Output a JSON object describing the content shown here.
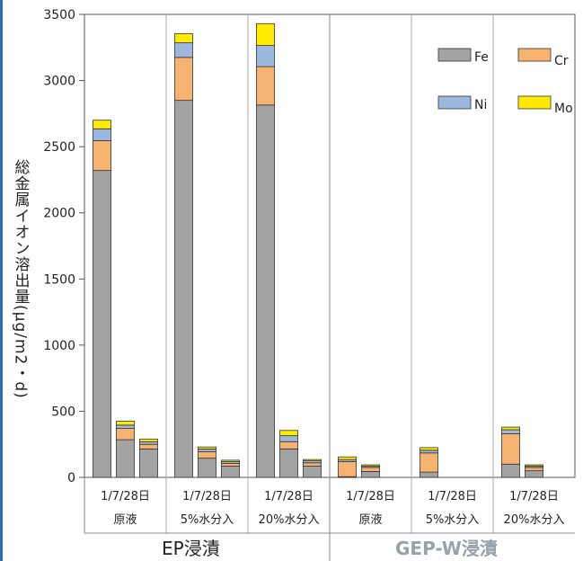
{
  "chart_data": {
    "type": "bar",
    "stacked": true,
    "ylabel": "総金属イオン溶出量(μg/m2・d)",
    "ylim": [
      0,
      3500
    ],
    "yticks": [
      "0",
      "500",
      "1000",
      "1500",
      "2000",
      "2500",
      "3000",
      "3500"
    ],
    "grid": false,
    "legend_position": "top-right",
    "series": [
      {
        "name": "Fe",
        "color": "#a3a3a3"
      },
      {
        "name": "Cr",
        "color": "#f5b271"
      },
      {
        "name": "Ni",
        "color": "#9cb8de"
      },
      {
        "name": "Mo",
        "color": "#ffea00"
      }
    ],
    "groups": [
      {
        "condition": "原液",
        "days_label": "1/7/28日",
        "parent": "EP浸漬",
        "bars": [
          {
            "Fe": 2320,
            "Cr": 225,
            "Ni": 90,
            "Mo": 65
          },
          {
            "Fe": 285,
            "Cr": 85,
            "Ni": 25,
            "Mo": 30
          },
          {
            "Fe": 215,
            "Cr": 35,
            "Ni": 20,
            "Mo": 20
          }
        ]
      },
      {
        "condition": "5%水分入",
        "days_label": "1/7/28日",
        "parent": "EP浸漬",
        "bars": [
          {
            "Fe": 2850,
            "Cr": 325,
            "Ni": 110,
            "Mo": 70
          },
          {
            "Fe": 145,
            "Cr": 50,
            "Ni": 20,
            "Mo": 15
          },
          {
            "Fe": 85,
            "Cr": 20,
            "Ni": 15,
            "Mo": 10
          }
        ]
      },
      {
        "condition": "20%水分入",
        "days_label": "1/7/28日",
        "parent": "EP浸漬",
        "bars": [
          {
            "Fe": 2815,
            "Cr": 290,
            "Ni": 160,
            "Mo": 165
          },
          {
            "Fe": 215,
            "Cr": 55,
            "Ni": 45,
            "Mo": 40
          },
          {
            "Fe": 85,
            "Cr": 25,
            "Ni": 15,
            "Mo": 10
          }
        ]
      },
      {
        "condition": "原液",
        "days_label": "1/7/28日",
        "parent": "GEP-W浸漬",
        "bars": [
          {
            "Fe": 5,
            "Cr": 115,
            "Ni": 15,
            "Mo": 20
          },
          {
            "Fe": 45,
            "Cr": 30,
            "Ni": 10,
            "Mo": 10
          },
          {
            "Fe": 0,
            "Cr": 0,
            "Ni": 0,
            "Mo": 0
          }
        ]
      },
      {
        "condition": "5%水分入",
        "days_label": "1/7/28日",
        "parent": "GEP-W浸漬",
        "bars": [
          {
            "Fe": 40,
            "Cr": 145,
            "Ni": 20,
            "Mo": 20
          },
          {
            "Fe": 0,
            "Cr": 0,
            "Ni": 0,
            "Mo": 0
          },
          {
            "Fe": 0,
            "Cr": 0,
            "Ni": 0,
            "Mo": 0
          }
        ]
      },
      {
        "condition": "20%水分入",
        "days_label": "1/7/28日",
        "parent": "GEP-W浸漬",
        "bars": [
          {
            "Fe": 100,
            "Cr": 230,
            "Ni": 30,
            "Mo": 20
          },
          {
            "Fe": 50,
            "Cr": 25,
            "Ni": 10,
            "Mo": 10
          },
          {
            "Fe": 0,
            "Cr": 0,
            "Ni": 0,
            "Mo": 0
          }
        ]
      }
    ],
    "group_labels": [
      "EP浸漬",
      "GEP-W浸漬"
    ]
  }
}
